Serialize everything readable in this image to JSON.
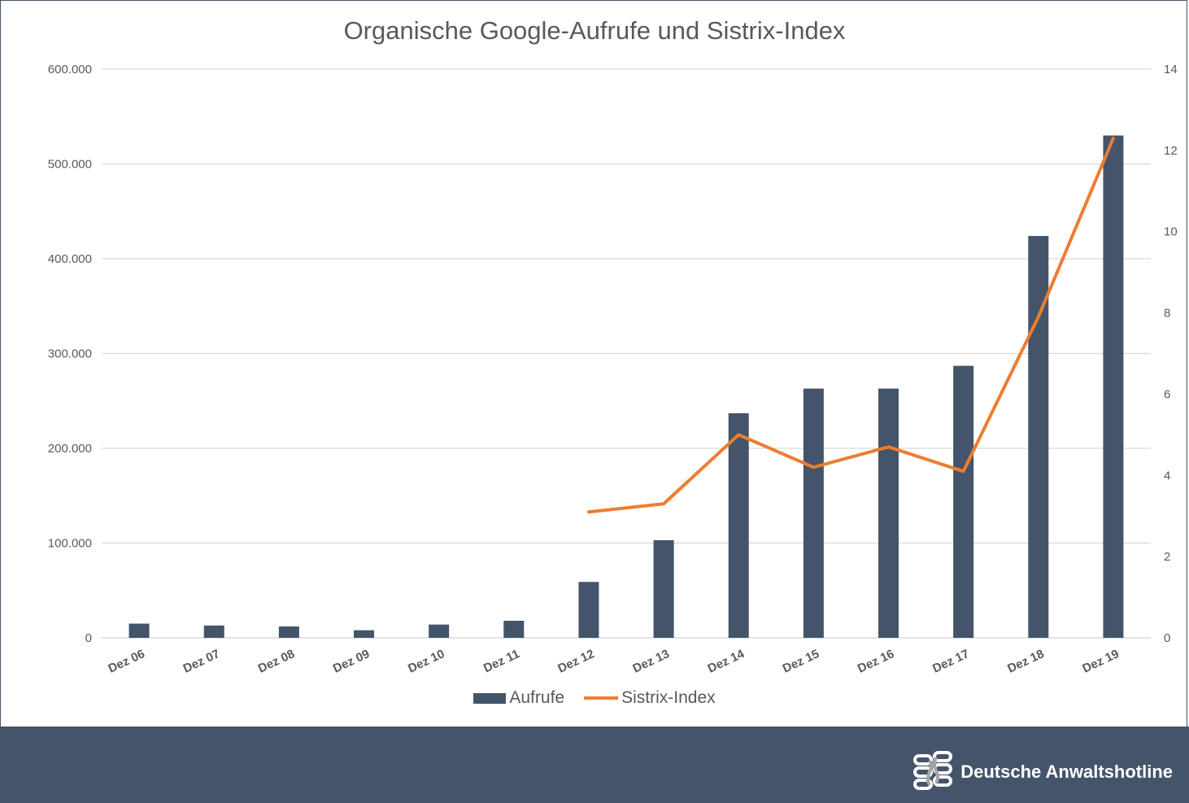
{
  "chart_data": {
    "type": "bar",
    "title": "Organische Google-Aufrufe und Sistrix-Index",
    "categories": [
      "Dez 06",
      "Dez 07",
      "Dez 08",
      "Dez 09",
      "Dez 10",
      "Dez 11",
      "Dez 12",
      "Dez 13",
      "Dez 14",
      "Dez 15",
      "Dez 16",
      "Dez 17",
      "Dez 18",
      "Dez 19"
    ],
    "series": [
      {
        "name": "Aufrufe",
        "type": "bar",
        "axis": "left",
        "color": "#44546a",
        "values": [
          15000,
          13000,
          12000,
          8000,
          14000,
          18000,
          59000,
          103000,
          237000,
          263000,
          263000,
          287000,
          424000,
          530000
        ]
      },
      {
        "name": "Sistrix-Index",
        "type": "line",
        "axis": "right",
        "color": "#ed7d31",
        "values": [
          null,
          null,
          null,
          null,
          null,
          null,
          3.1,
          3.3,
          5.0,
          4.2,
          4.7,
          4.1,
          7.9,
          12.3
        ]
      }
    ],
    "y_left": {
      "ylim": [
        0,
        600000
      ],
      "ticks": [
        "0",
        "100.000",
        "200.000",
        "300.000",
        "400.000",
        "500.000",
        "600.000"
      ]
    },
    "y_right": {
      "ylim": [
        0,
        14
      ],
      "ticks": [
        "0",
        "2",
        "4",
        "6",
        "8",
        "10",
        "12",
        "14"
      ]
    },
    "grid": true,
    "legend_position": "bottom"
  },
  "footer": {
    "brand_name": "Deutsche Anwaltshotline",
    "logo_icon": "chain-logo-icon"
  }
}
